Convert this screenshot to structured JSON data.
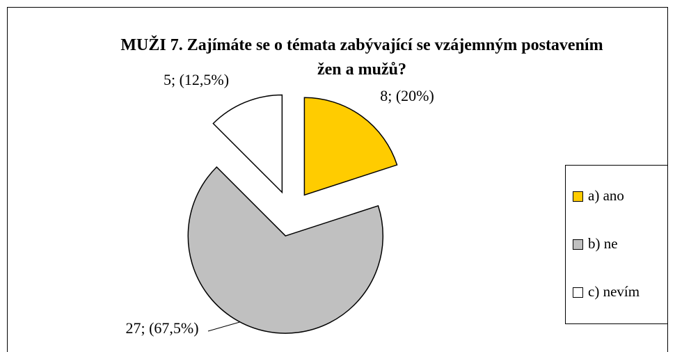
{
  "chart_data": {
    "type": "pie",
    "title": "MUŽI 7. Zajímáte se o témata zabývající se vzájemným postavením žen a mužů?",
    "categories": [
      "a) ano",
      "b) ne",
      "c) nevím"
    ],
    "values": [
      8,
      27,
      5
    ],
    "value_labels": [
      "8; (20%)",
      "27; (67,5%)",
      "5; (12,5%)"
    ],
    "colors": [
      "#ffcc00",
      "#c0c0c0",
      "#ffffff"
    ],
    "legend": "right"
  }
}
